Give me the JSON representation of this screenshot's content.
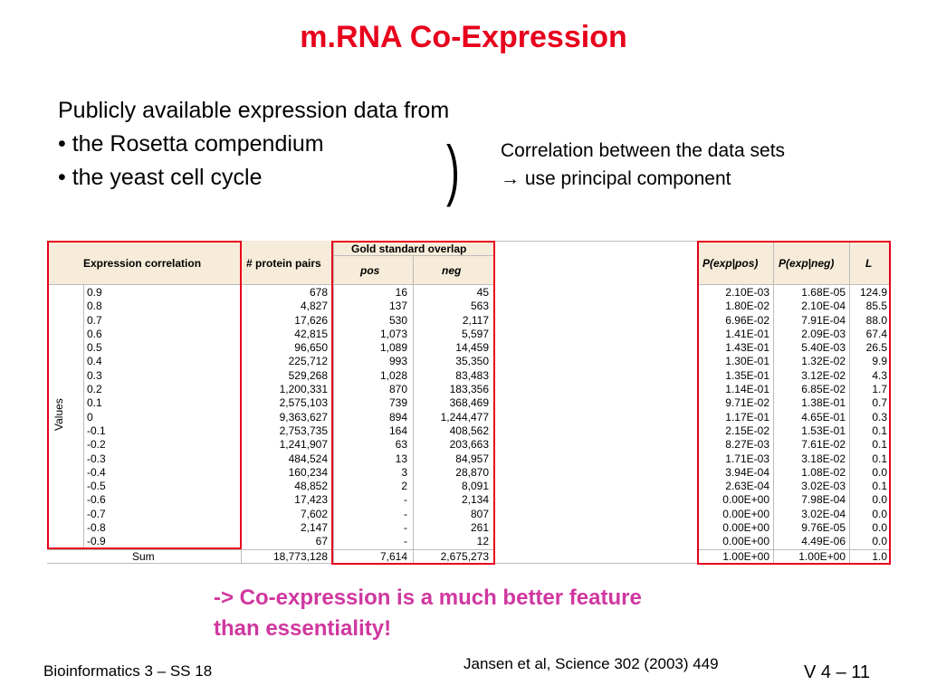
{
  "slide": {
    "title": "m.RNA Co-Expression",
    "intro": "Publicly available expression data from",
    "bullets": [
      "• the Rosetta compendium",
      "• the yeast cell cycle"
    ],
    "paren": ")",
    "correlation_lines": [
      "Correlation between the data sets",
      "→ use principal component"
    ],
    "conclusion_lines": [
      "-> Co-expression is a much better feature",
      "than essentiality!"
    ],
    "footer_left": "Bioinformatics 3 – SS 18",
    "citation": "Jansen et al, Science 302 (2003) 449",
    "slide_number": "V 4 –  11",
    "accent_color": "#e8001c",
    "conclusion_color": "#d0379f"
  },
  "table": {
    "headers": {
      "expression_correlation": "Expression correlation",
      "protein_pairs": "# protein pairs",
      "gold_standard": "Gold standard overlap",
      "pos": "pos",
      "neg": "neg",
      "p_exp_pos": "P(exp|pos)",
      "p_exp_neg": "P(exp|neg)",
      "l": "L"
    },
    "values_label": "Values",
    "correlation": [
      "0.9",
      "0.8",
      "0.7",
      "0.6",
      "0.5",
      "0.4",
      "0.3",
      "0.2",
      "0.1",
      "0",
      "-0.1",
      "-0.2",
      "-0.3",
      "-0.4",
      "-0.5",
      "-0.6",
      "-0.7",
      "-0.8",
      "-0.9"
    ],
    "protein_pairs": [
      "678",
      "4,827",
      "17,626",
      "42,815",
      "96,650",
      "225,712",
      "529,268",
      "1,200,331",
      "2,575,103",
      "9,363,627",
      "2,753,735",
      "1,241,907",
      "484,524",
      "160,234",
      "48,852",
      "17,423",
      "7,602",
      "2,147",
      "67"
    ],
    "pos": [
      "16",
      "137",
      "530",
      "1,073",
      "1,089",
      "993",
      "1,028",
      "870",
      "739",
      "894",
      "164",
      "63",
      "13",
      "3",
      "2",
      "-",
      "-",
      "-",
      "-"
    ],
    "neg": [
      "45",
      "563",
      "2,117",
      "5,597",
      "14,459",
      "35,350",
      "83,483",
      "183,356",
      "368,469",
      "1,244,477",
      "408,562",
      "203,663",
      "84,957",
      "28,870",
      "8,091",
      "2,134",
      "807",
      "261",
      "12"
    ],
    "p_exp_pos": [
      "2.10E-03",
      "1.80E-02",
      "6.96E-02",
      "1.41E-01",
      "1.43E-01",
      "1.30E-01",
      "1.35E-01",
      "1.14E-01",
      "9.71E-02",
      "1.17E-01",
      "2.15E-02",
      "8.27E-03",
      "1.71E-03",
      "3.94E-04",
      "2.63E-04",
      "0.00E+00",
      "0.00E+00",
      "0.00E+00",
      "0.00E+00"
    ],
    "p_exp_neg": [
      "1.68E-05",
      "2.10E-04",
      "7.91E-04",
      "2.09E-03",
      "5.40E-03",
      "1.32E-02",
      "3.12E-02",
      "6.85E-02",
      "1.38E-01",
      "4.65E-01",
      "1.53E-01",
      "7.61E-02",
      "3.18E-02",
      "1.08E-02",
      "3.02E-03",
      "7.98E-04",
      "3.02E-04",
      "9.76E-05",
      "4.49E-06"
    ],
    "l": [
      "124.9",
      "85.5",
      "88.0",
      "67.4",
      "26.5",
      "9.9",
      "4.3",
      "1.7",
      "0.7",
      "0.3",
      "0.1",
      "0.1",
      "0.1",
      "0.0",
      "0.1",
      "0.0",
      "0.0",
      "0.0",
      "0.0"
    ],
    "sum": {
      "label": "Sum",
      "protein_pairs": "18,773,128",
      "pos": "7,614",
      "neg": "2,675,273",
      "p_exp_pos": "1.00E+00",
      "p_exp_neg": "1.00E+00",
      "l": "1.0"
    }
  }
}
